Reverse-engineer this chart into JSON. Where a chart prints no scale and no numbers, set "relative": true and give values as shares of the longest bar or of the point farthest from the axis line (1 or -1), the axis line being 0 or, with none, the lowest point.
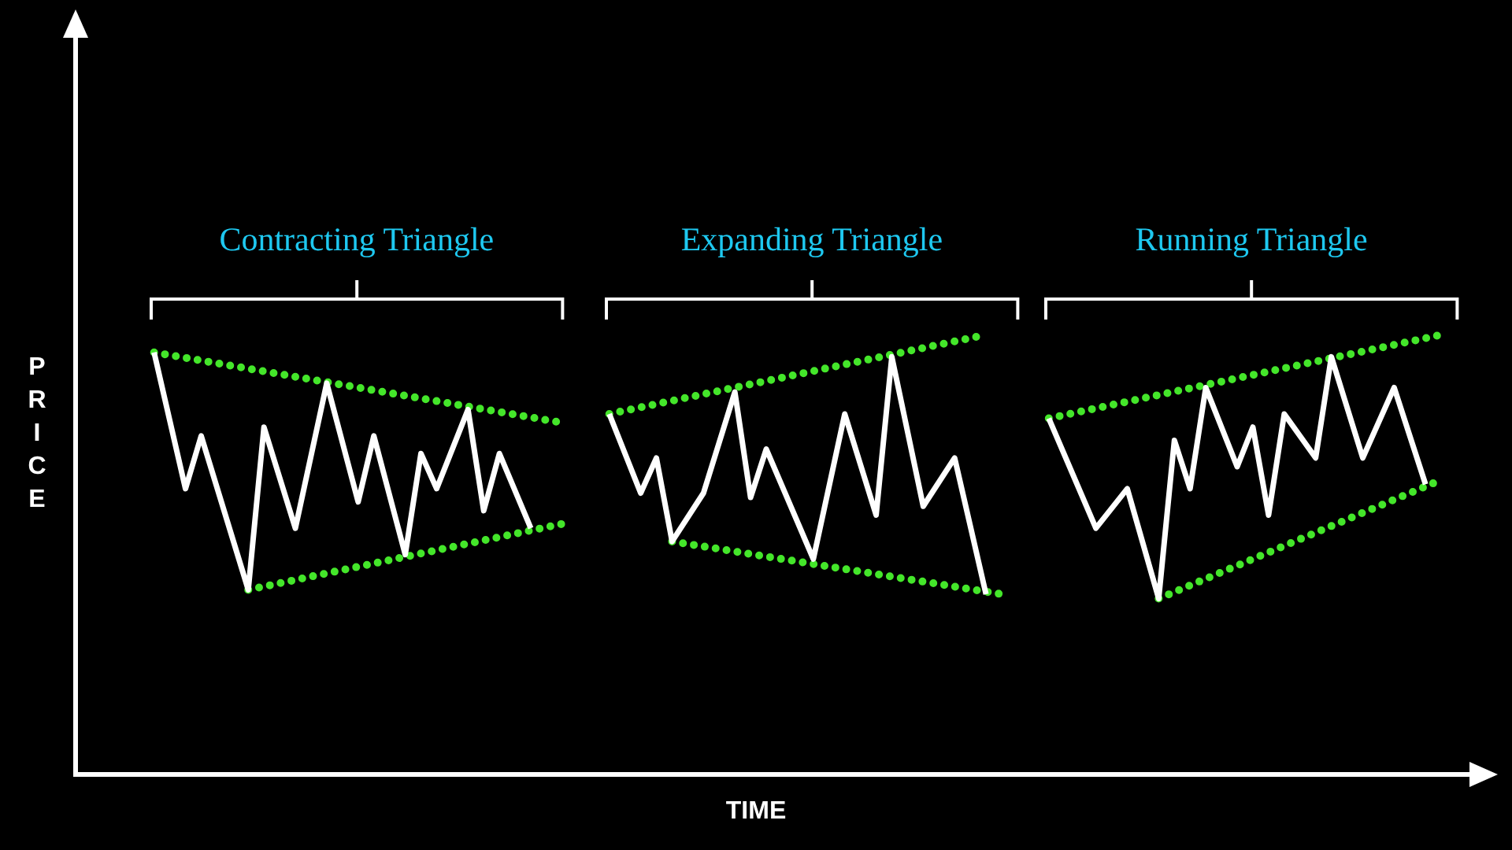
{
  "chart_data": {
    "type": "line",
    "relative": true,
    "xlabel": "TIME",
    "ylabel": "PRICE",
    "marker": "none",
    "annotations": [
      "Contracting Triangle",
      "Expanding Triangle",
      "Running Triangle"
    ],
    "categories": [
      null,
      null,
      null,
      null,
      null,
      null,
      null,
      null,
      null,
      null,
      null,
      null,
      null,
      null,
      null,
      null,
      null,
      null,
      null,
      null,
      null,
      null,
      null,
      null,
      null,
      null,
      null,
      null,
      null,
      null,
      null,
      null,
      null,
      null,
      null,
      null,
      null,
      null,
      null,
      null,
      null,
      null,
      null,
      null,
      null,
      null,
      null,
      null,
      null,
      null,
      null,
      null,
      null,
      null,
      null,
      null,
      null,
      null,
      null,
      null,
      null,
      null,
      null,
      null,
      null,
      null,
      null,
      null,
      null,
      null,
      null,
      null,
      null,
      null,
      null,
      null,
      null,
      null,
      null,
      null,
      null,
      null,
      null,
      null,
      null,
      null,
      null,
      null,
      null,
      null
    ],
    "series": [
      {
        "color": "#ffffff",
        "line_style": "solid",
        "values": [
          null,
          null,
          null,
          null,
          null,
          0.96,
          null,
          0.65,
          0.77,
          null,
          null,
          0.42,
          0.79,
          null,
          0.56,
          null,
          0.89,
          null,
          0.62,
          0.77,
          null,
          0.5,
          0.73,
          0.65,
          null,
          0.83,
          0.6,
          0.73,
          null,
          0.56,
          null,
          null,
          null,
          null,
          null,
          null,
          null,
          null,
          null,
          null,
          null,
          null,
          null,
          null,
          null,
          null,
          null,
          null,
          null,
          null,
          null,
          null,
          null,
          null,
          null,
          null,
          null,
          null,
          null,
          null,
          null,
          null,
          null,
          null,
          null,
          null,
          null,
          null,
          null,
          null,
          null,
          null,
          null,
          null,
          null,
          null,
          null,
          null,
          null,
          null,
          null,
          null,
          null,
          null,
          null,
          null,
          null,
          null,
          null,
          null
        ]
      },
      {
        "color": "#ffffff",
        "line_style": "solid",
        "values": [
          null,
          null,
          null,
          null,
          null,
          null,
          null,
          null,
          null,
          null,
          null,
          null,
          null,
          null,
          null,
          null,
          null,
          null,
          null,
          null,
          null,
          null,
          null,
          null,
          null,
          null,
          null,
          null,
          null,
          null,
          null,
          null,
          null,
          null,
          0.82,
          null,
          0.64,
          0.72,
          0.53,
          null,
          0.64,
          null,
          0.87,
          0.63,
          0.74,
          null,
          null,
          0.49,
          null,
          0.82,
          null,
          0.59,
          0.95,
          null,
          0.61,
          null,
          0.72,
          null,
          0.41,
          null,
          null,
          null,
          null,
          null,
          null,
          null,
          null,
          null,
          null,
          null,
          null,
          null,
          null,
          null,
          null,
          null,
          null,
          null,
          null,
          null,
          null,
          null,
          null,
          null,
          null,
          null,
          null,
          null,
          null,
          null
        ]
      },
      {
        "color": "#ffffff",
        "line_style": "solid",
        "values": [
          null,
          null,
          null,
          null,
          null,
          null,
          null,
          null,
          null,
          null,
          null,
          null,
          null,
          null,
          null,
          null,
          null,
          null,
          null,
          null,
          null,
          null,
          null,
          null,
          null,
          null,
          null,
          null,
          null,
          null,
          null,
          null,
          null,
          null,
          null,
          null,
          null,
          null,
          null,
          null,
          null,
          null,
          null,
          null,
          null,
          null,
          null,
          null,
          null,
          null,
          null,
          null,
          null,
          null,
          null,
          null,
          null,
          null,
          null,
          null,
          null,
          null,
          0.81,
          null,
          null,
          0.56,
          null,
          0.65,
          null,
          0.4,
          0.76,
          0.65,
          0.88,
          null,
          0.7,
          0.79,
          0.59,
          0.82,
          null,
          0.72,
          0.95,
          null,
          0.72,
          null,
          0.88,
          null,
          0.66,
          null,
          null,
          null
        ]
      },
      {
        "color": "#44e62a",
        "line_style": "dotted",
        "values": [
          null,
          null,
          null,
          null,
          null,
          0.96,
          null,
          null,
          null,
          null,
          null,
          null,
          null,
          null,
          null,
          null,
          null,
          null,
          null,
          null,
          null,
          null,
          null,
          null,
          null,
          null,
          null,
          null,
          null,
          null,
          null,
          0.8,
          null,
          null,
          null,
          null,
          null,
          null,
          null,
          null,
          null,
          null,
          null,
          null,
          null,
          null,
          null,
          null,
          null,
          null,
          null,
          null,
          null,
          null,
          null,
          null,
          null,
          null,
          null,
          null,
          null,
          null,
          null,
          null,
          null,
          null,
          null,
          null,
          null,
          null,
          null,
          null,
          null,
          null,
          null,
          null,
          null,
          null,
          null,
          null,
          null,
          null,
          null,
          null,
          null,
          null,
          null,
          null,
          null,
          null
        ]
      },
      {
        "color": "#44e62a",
        "line_style": "dotted",
        "values": [
          null,
          null,
          null,
          null,
          null,
          null,
          null,
          null,
          null,
          null,
          null,
          0.42,
          null,
          null,
          null,
          null,
          null,
          null,
          null,
          null,
          null,
          null,
          null,
          null,
          null,
          null,
          null,
          null,
          null,
          null,
          null,
          0.57,
          null,
          null,
          null,
          null,
          null,
          null,
          null,
          null,
          null,
          null,
          null,
          null,
          null,
          null,
          null,
          null,
          null,
          null,
          null,
          null,
          null,
          null,
          null,
          null,
          null,
          null,
          null,
          null,
          null,
          null,
          null,
          null,
          null,
          null,
          null,
          null,
          null,
          null,
          null,
          null,
          null,
          null,
          null,
          null,
          null,
          null,
          null,
          null,
          null,
          null,
          null,
          null,
          null,
          null,
          null,
          null,
          null,
          null
        ]
      },
      {
        "color": "#44e62a",
        "line_style": "dotted",
        "values": [
          null,
          null,
          null,
          null,
          null,
          null,
          null,
          null,
          null,
          null,
          null,
          null,
          null,
          null,
          null,
          null,
          null,
          null,
          null,
          null,
          null,
          null,
          null,
          null,
          null,
          null,
          null,
          null,
          null,
          null,
          null,
          null,
          null,
          null,
          0.82,
          null,
          null,
          null,
          null,
          null,
          null,
          null,
          null,
          null,
          null,
          null,
          null,
          null,
          null,
          null,
          null,
          null,
          null,
          null,
          null,
          null,
          null,
          null,
          1.0,
          null,
          null,
          null,
          null,
          null,
          null,
          null,
          null,
          null,
          null,
          null,
          null,
          null,
          null,
          null,
          null,
          null,
          null,
          null,
          null,
          null,
          null,
          null,
          null,
          null,
          null,
          null,
          null,
          null,
          null,
          null
        ]
      },
      {
        "color": "#44e62a",
        "line_style": "dotted",
        "values": [
          null,
          null,
          null,
          null,
          null,
          null,
          null,
          null,
          null,
          null,
          null,
          null,
          null,
          null,
          null,
          null,
          null,
          null,
          null,
          null,
          null,
          null,
          null,
          null,
          null,
          null,
          null,
          null,
          null,
          null,
          null,
          null,
          null,
          null,
          null,
          null,
          null,
          null,
          0.53,
          null,
          null,
          null,
          null,
          null,
          null,
          null,
          null,
          null,
          null,
          null,
          null,
          null,
          null,
          null,
          null,
          null,
          null,
          null,
          null,
          0.41,
          null,
          null,
          null,
          null,
          null,
          null,
          null,
          null,
          null,
          null,
          null,
          null,
          null,
          null,
          null,
          null,
          null,
          null,
          null,
          null,
          null,
          null,
          null,
          null,
          null,
          null,
          null,
          null,
          null,
          null
        ]
      },
      {
        "color": "#44e62a",
        "line_style": "dotted",
        "values": [
          null,
          null,
          null,
          null,
          null,
          null,
          null,
          null,
          null,
          null,
          null,
          null,
          null,
          null,
          null,
          null,
          null,
          null,
          null,
          null,
          null,
          null,
          null,
          null,
          null,
          null,
          null,
          null,
          null,
          null,
          null,
          null,
          null,
          null,
          null,
          null,
          null,
          null,
          null,
          null,
          null,
          null,
          null,
          null,
          null,
          null,
          null,
          null,
          null,
          null,
          null,
          null,
          null,
          null,
          null,
          null,
          null,
          null,
          null,
          null,
          null,
          null,
          0.81,
          null,
          null,
          null,
          null,
          null,
          null,
          null,
          null,
          null,
          null,
          null,
          null,
          null,
          null,
          null,
          null,
          null,
          null,
          null,
          null,
          null,
          null,
          null,
          null,
          1.0,
          null,
          null
        ]
      },
      {
        "color": "#44e62a",
        "line_style": "dotted",
        "values": [
          null,
          null,
          null,
          null,
          null,
          null,
          null,
          null,
          null,
          null,
          null,
          null,
          null,
          null,
          null,
          null,
          null,
          null,
          null,
          null,
          null,
          null,
          null,
          null,
          null,
          null,
          null,
          null,
          null,
          null,
          null,
          null,
          null,
          null,
          null,
          null,
          null,
          null,
          null,
          null,
          null,
          null,
          null,
          null,
          null,
          null,
          null,
          null,
          null,
          null,
          null,
          null,
          null,
          null,
          null,
          null,
          null,
          null,
          null,
          null,
          null,
          null,
          null,
          null,
          null,
          null,
          null,
          null,
          null,
          0.4,
          null,
          null,
          null,
          null,
          null,
          null,
          null,
          null,
          null,
          null,
          null,
          null,
          null,
          null,
          null,
          null,
          null,
          0.67,
          null,
          null
        ]
      }
    ]
  }
}
